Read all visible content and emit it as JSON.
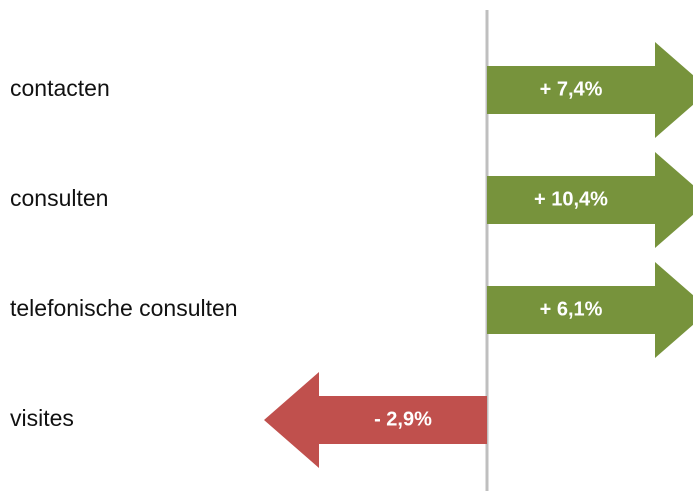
{
  "rows": [
    {
      "label": "contacten",
      "change": "+ 7,4%",
      "direction": "right",
      "color": "#77933c"
    },
    {
      "label": "consulten",
      "change": "+ 10,4%",
      "direction": "right",
      "color": "#77933c"
    },
    {
      "label": "telefonische consulten",
      "change": "+ 6,1%",
      "direction": "right",
      "color": "#77933c"
    },
    {
      "label": "visites",
      "change": "- 2,9%",
      "direction": "left",
      "color": "#c0504d"
    }
  ]
}
